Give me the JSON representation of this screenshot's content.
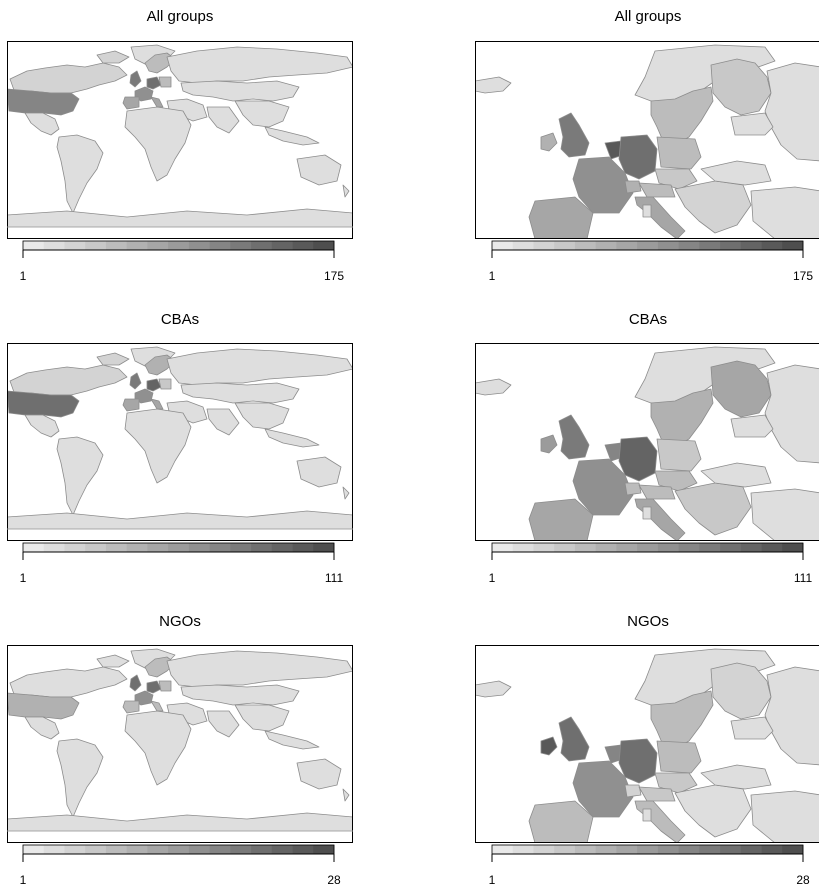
{
  "colors": {
    "scale": [
      "#e9e9e9",
      "#dedede",
      "#d3d3d3",
      "#c8c8c8",
      "#bcbcbc",
      "#b1b1b1",
      "#a6a6a6",
      "#9b9b9b",
      "#909090",
      "#858585",
      "#7a7a7a",
      "#6f6f6f",
      "#646464",
      "#595959",
      "#4e4e4e"
    ],
    "no_data": "#ffffff",
    "border": "#8c8c8c"
  },
  "panels": [
    {
      "title": "All groups",
      "scale_min": "1",
      "scale_max": "175",
      "levels": {
        "usa": 0.62,
        "canada": 0.12,
        "russia": 0.1,
        "uk": 0.7,
        "ireland": 0.35,
        "france": 0.55,
        "germany": 0.78,
        "benelux": 0.92,
        "iberia": 0.42,
        "italy": 0.45,
        "scandinavia": 0.3,
        "finland": 0.22,
        "poland": 0.25,
        "central": 0.22,
        "austria": 0.3,
        "southeast": 0.15,
        "baltics": 0.1,
        "switzerland": 0.35,
        "other": 0.1
      }
    },
    {
      "title": "All groups",
      "scale_min": "1",
      "scale_max": "175",
      "levels": {
        "usa": 0.62,
        "canada": 0.12,
        "russia": 0.1,
        "uk": 0.7,
        "ireland": 0.35,
        "france": 0.55,
        "germany": 0.78,
        "benelux": 0.92,
        "iberia": 0.42,
        "italy": 0.45,
        "scandinavia": 0.3,
        "finland": 0.22,
        "poland": 0.25,
        "central": 0.22,
        "austria": 0.3,
        "southeast": 0.15,
        "baltics": 0.1,
        "switzerland": 0.35,
        "other": 0.1
      }
    },
    {
      "title": "CBAs",
      "scale_min": "1",
      "scale_max": "111",
      "levels": {
        "usa": 0.8,
        "canada": 0.12,
        "russia": 0.1,
        "uk": 0.72,
        "ireland": 0.5,
        "france": 0.55,
        "germany": 0.85,
        "benelux": 0.62,
        "iberia": 0.45,
        "italy": 0.45,
        "scandinavia": 0.35,
        "finland": 0.4,
        "poland": 0.2,
        "central": 0.25,
        "austria": 0.3,
        "southeast": 0.2,
        "baltics": 0.1,
        "switzerland": 0.3,
        "other": 0.1
      }
    },
    {
      "title": "CBAs",
      "scale_min": "1",
      "scale_max": "111",
      "levels": {
        "usa": 0.8,
        "canada": 0.12,
        "russia": 0.1,
        "uk": 0.72,
        "ireland": 0.5,
        "france": 0.55,
        "germany": 0.85,
        "benelux": 0.62,
        "iberia": 0.45,
        "italy": 0.45,
        "scandinavia": 0.35,
        "finland": 0.4,
        "poland": 0.2,
        "central": 0.25,
        "austria": 0.3,
        "southeast": 0.2,
        "baltics": 0.1,
        "switzerland": 0.3,
        "other": 0.1
      }
    },
    {
      "title": "NGOs",
      "scale_min": "1",
      "scale_max": "28",
      "levels": {
        "usa": 0.35,
        "canada": 0.08,
        "russia": 0.08,
        "uk": 0.75,
        "ireland": 0.9,
        "france": 0.55,
        "germany": 0.8,
        "benelux": 0.65,
        "iberia": 0.3,
        "italy": 0.25,
        "scandinavia": 0.3,
        "finland": 0.15,
        "poland": 0.3,
        "central": 0.2,
        "austria": 0.2,
        "southeast": 0.1,
        "baltics": 0.1,
        "switzerland": 0.15,
        "other": 0.05
      }
    },
    {
      "title": "NGOs",
      "scale_min": "1",
      "scale_max": "28",
      "levels": {
        "usa": 0.35,
        "canada": 0.08,
        "russia": 0.08,
        "uk": 0.75,
        "ireland": 0.9,
        "france": 0.55,
        "germany": 0.8,
        "benelux": 0.65,
        "iberia": 0.3,
        "italy": 0.25,
        "scandinavia": 0.3,
        "finland": 0.15,
        "poland": 0.3,
        "central": 0.2,
        "austria": 0.2,
        "southeast": 0.1,
        "baltics": 0.1,
        "switzerland": 0.15,
        "other": 0.05
      }
    }
  ]
}
